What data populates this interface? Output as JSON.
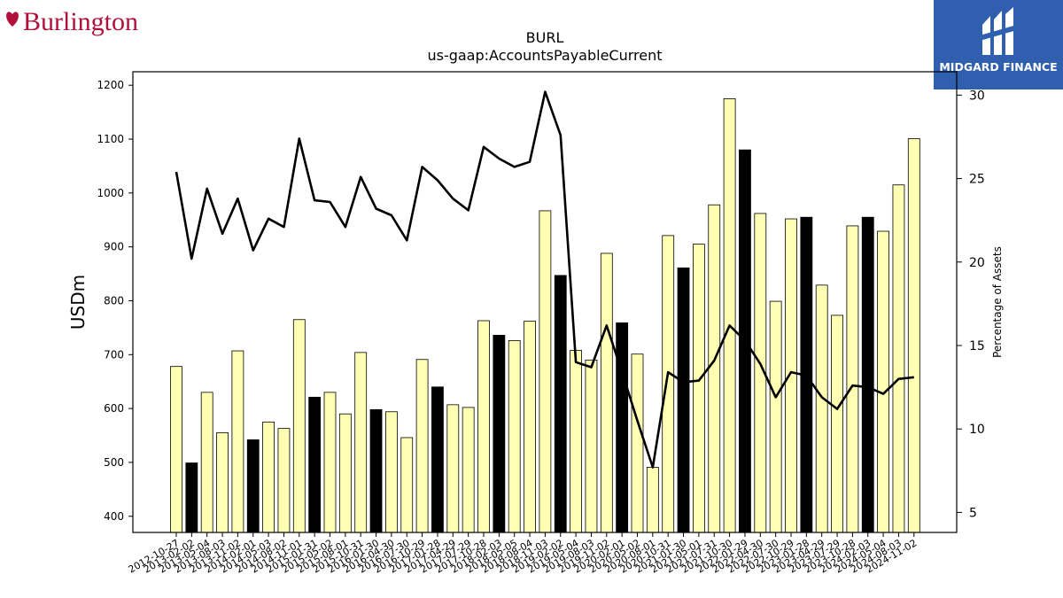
{
  "branding": {
    "left_logo_text": "Burlington",
    "right_logo_text": "MIDGARD FINANCE",
    "colors": {
      "burlington_red": "#b0103a",
      "midgard_blue": "#2f5fae"
    }
  },
  "chart_data": {
    "type": "bar",
    "title": "BURL",
    "subtitle": "us-gaap:AccountsPayableCurrent",
    "ylabel": "USDm",
    "y2label": "Percentage of Assets",
    "ylim": [
      370,
      1225
    ],
    "y2lim": [
      3.8,
      31.4
    ],
    "yticks": [
      400,
      500,
      600,
      700,
      800,
      900,
      1000,
      1100,
      1200
    ],
    "y2ticks": [
      5,
      10,
      15,
      20,
      25,
      30
    ],
    "grid": false,
    "bar_colors": {
      "normal": "#ffffb3",
      "highlight": "#000000"
    },
    "line_color": "#000000",
    "categories": [
      "2012-10-27",
      "2013-02-02",
      "2013-05-04",
      "2013-08-03",
      "2013-11-02",
      "2014-02-01",
      "2014-05-03",
      "2014-08-02",
      "2014-11-01",
      "2015-01-31",
      "2015-05-02",
      "2015-08-01",
      "2015-10-31",
      "2016-01-30",
      "2016-04-30",
      "2016-07-30",
      "2016-10-29",
      "2017-01-28",
      "2017-04-29",
      "2017-07-29",
      "2017-10-28",
      "2018-02-03",
      "2018-05-05",
      "2018-08-04",
      "2018-11-03",
      "2019-02-02",
      "2019-05-04",
      "2019-08-03",
      "2019-11-02",
      "2020-02-01",
      "2020-05-02",
      "2020-08-01",
      "2020-10-31",
      "2021-01-30",
      "2021-05-01",
      "2021-07-31",
      "2021-10-30",
      "2022-01-29",
      "2022-04-30",
      "2022-07-30",
      "2022-10-29",
      "2023-01-28",
      "2023-04-29",
      "2023-07-29",
      "2023-10-28",
      "2024-02-03",
      "2024-05-04",
      "2024-08-03",
      "2024-11-02"
    ],
    "series": [
      {
        "kind": "bar",
        "values": [
          678,
          499,
          630,
          555,
          707,
          542,
          575,
          563,
          765,
          621,
          630,
          590,
          704,
          598,
          594,
          546,
          691,
          640,
          607,
          602,
          763,
          736,
          726,
          762,
          967,
          847,
          708,
          690,
          888,
          759,
          701,
          491,
          921,
          861,
          905,
          978,
          1175,
          1080,
          962,
          799,
          952,
          955,
          829,
          773,
          939,
          955,
          929,
          1015,
          1101
        ],
        "highlight": [
          false,
          true,
          false,
          false,
          false,
          true,
          false,
          false,
          false,
          true,
          false,
          false,
          false,
          true,
          false,
          false,
          false,
          true,
          false,
          false,
          false,
          true,
          false,
          false,
          false,
          true,
          false,
          false,
          false,
          true,
          false,
          false,
          false,
          true,
          false,
          false,
          false,
          true,
          false,
          false,
          false,
          true,
          false,
          false,
          false,
          true,
          false,
          false,
          false
        ]
      },
      {
        "kind": "line",
        "axis": "right",
        "values": [
          25.4,
          20.2,
          24.4,
          21.7,
          23.8,
          20.7,
          22.6,
          22.1,
          27.4,
          23.7,
          23.6,
          22.1,
          25.1,
          23.2,
          22.8,
          21.3,
          25.7,
          24.9,
          23.8,
          23.1,
          26.9,
          26.2,
          25.7,
          26.0,
          30.2,
          27.6,
          14.0,
          13.7,
          16.2,
          13.4,
          10.5,
          7.7,
          13.4,
          12.8,
          12.9,
          14.1,
          16.2,
          15.3,
          13.9,
          11.9,
          13.4,
          13.2,
          11.9,
          11.2,
          12.6,
          12.5,
          12.1,
          13.0,
          13.1
        ]
      }
    ]
  }
}
